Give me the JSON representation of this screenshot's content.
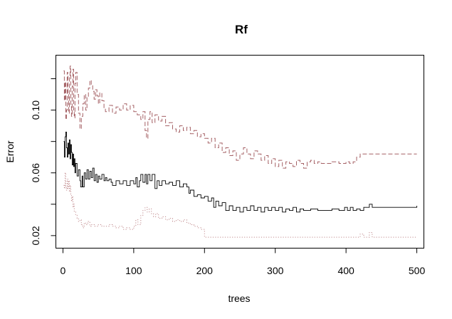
{
  "chart_data": {
    "type": "line",
    "title": "Rf",
    "xlabel": "trees",
    "ylabel": "Error",
    "xlim": [
      -10,
      510
    ],
    "ylim": [
      0.012,
      0.135
    ],
    "x_ticks": [
      0,
      100,
      200,
      300,
      400,
      500
    ],
    "y_ticks": [
      0.02,
      0.04,
      0.06,
      0.08,
      0.1,
      0.12
    ],
    "y_tick_labels_shown": [
      "0.02",
      "0.06",
      "0.10"
    ],
    "grid": false,
    "legend": "none",
    "series": [
      {
        "color": "#000000",
        "dash": "solid",
        "points": [
          [
            1,
            0.08
          ],
          [
            2,
            0.07
          ],
          [
            3,
            0.083
          ],
          [
            4,
            0.086
          ],
          [
            5,
            0.076
          ],
          [
            6,
            0.07
          ],
          [
            7,
            0.079
          ],
          [
            8,
            0.072
          ],
          [
            9,
            0.081
          ],
          [
            10,
            0.069
          ],
          [
            11,
            0.078
          ],
          [
            12,
            0.073
          ],
          [
            13,
            0.065
          ],
          [
            14,
            0.072
          ],
          [
            15,
            0.064
          ],
          [
            16,
            0.069
          ],
          [
            17,
            0.06
          ],
          [
            18,
            0.066
          ],
          [
            20,
            0.058
          ],
          [
            22,
            0.062
          ],
          [
            24,
            0.055
          ],
          [
            25,
            0.051
          ],
          [
            27,
            0.058
          ],
          [
            28,
            0.051
          ],
          [
            30,
            0.06
          ],
          [
            32,
            0.056
          ],
          [
            34,
            0.062
          ],
          [
            36,
            0.056
          ],
          [
            38,
            0.061
          ],
          [
            40,
            0.057
          ],
          [
            42,
            0.063
          ],
          [
            44,
            0.055
          ],
          [
            46,
            0.059
          ],
          [
            48,
            0.054
          ],
          [
            50,
            0.058
          ],
          [
            52,
            0.056
          ],
          [
            55,
            0.059
          ],
          [
            58,
            0.055
          ],
          [
            60,
            0.057
          ],
          [
            62,
            0.055
          ],
          [
            65,
            0.056
          ],
          [
            68,
            0.054
          ],
          [
            70,
            0.052
          ],
          [
            75,
            0.055
          ],
          [
            80,
            0.053
          ],
          [
            85,
            0.055
          ],
          [
            90,
            0.052
          ],
          [
            95,
            0.055
          ],
          [
            100,
            0.053
          ],
          [
            103,
            0.057
          ],
          [
            105,
            0.051
          ],
          [
            108,
            0.055
          ],
          [
            110,
            0.059
          ],
          [
            113,
            0.054
          ],
          [
            116,
            0.059
          ],
          [
            118,
            0.053
          ],
          [
            120,
            0.059
          ],
          [
            123,
            0.055
          ],
          [
            126,
            0.059
          ],
          [
            130,
            0.05
          ],
          [
            133,
            0.055
          ],
          [
            136,
            0.052
          ],
          [
            140,
            0.055
          ],
          [
            145,
            0.053
          ],
          [
            150,
            0.054
          ],
          [
            155,
            0.052
          ],
          [
            160,
            0.055
          ],
          [
            165,
            0.051
          ],
          [
            170,
            0.053
          ],
          [
            175,
            0.051
          ],
          [
            178,
            0.047
          ],
          [
            180,
            0.049
          ],
          [
            185,
            0.045
          ],
          [
            190,
            0.046
          ],
          [
            195,
            0.044
          ],
          [
            200,
            0.045
          ],
          [
            205,
            0.042
          ],
          [
            210,
            0.044
          ],
          [
            213,
            0.038
          ],
          [
            216,
            0.042
          ],
          [
            220,
            0.039
          ],
          [
            225,
            0.041
          ],
          [
            230,
            0.036
          ],
          [
            235,
            0.039
          ],
          [
            240,
            0.036
          ],
          [
            245,
            0.038
          ],
          [
            250,
            0.035
          ],
          [
            255,
            0.038
          ],
          [
            260,
            0.036
          ],
          [
            265,
            0.039
          ],
          [
            270,
            0.036
          ],
          [
            275,
            0.038
          ],
          [
            280,
            0.035
          ],
          [
            285,
            0.038
          ],
          [
            290,
            0.036
          ],
          [
            295,
            0.038
          ],
          [
            300,
            0.036
          ],
          [
            305,
            0.038
          ],
          [
            310,
            0.035
          ],
          [
            315,
            0.037
          ],
          [
            320,
            0.036
          ],
          [
            325,
            0.038
          ],
          [
            330,
            0.035
          ],
          [
            335,
            0.037
          ],
          [
            340,
            0.036
          ],
          [
            350,
            0.037
          ],
          [
            360,
            0.036
          ],
          [
            370,
            0.036
          ],
          [
            380,
            0.037
          ],
          [
            390,
            0.036
          ],
          [
            398,
            0.038
          ],
          [
            402,
            0.036
          ],
          [
            406,
            0.038
          ],
          [
            410,
            0.036
          ],
          [
            415,
            0.037
          ],
          [
            420,
            0.036
          ],
          [
            425,
            0.038
          ],
          [
            430,
            0.038
          ],
          [
            433,
            0.04
          ],
          [
            437,
            0.038
          ],
          [
            450,
            0.038
          ],
          [
            470,
            0.038
          ],
          [
            490,
            0.038
          ],
          [
            500,
            0.039
          ]
        ]
      },
      {
        "color": "#a56165",
        "dash": "dashed",
        "points": [
          [
            1,
            0.125
          ],
          [
            2,
            0.106
          ],
          [
            3,
            0.118
          ],
          [
            4,
            0.094
          ],
          [
            5,
            0.1
          ],
          [
            6,
            0.124
          ],
          [
            7,
            0.111
          ],
          [
            8,
            0.098
          ],
          [
            9,
            0.121
          ],
          [
            10,
            0.128
          ],
          [
            11,
            0.103
          ],
          [
            12,
            0.096
          ],
          [
            13,
            0.115
          ],
          [
            14,
            0.126
          ],
          [
            15,
            0.1
          ],
          [
            16,
            0.095
          ],
          [
            17,
            0.117
          ],
          [
            18,
            0.124
          ],
          [
            20,
            0.11
          ],
          [
            22,
            0.098
          ],
          [
            24,
            0.088
          ],
          [
            26,
            0.096
          ],
          [
            28,
            0.104
          ],
          [
            30,
            0.11
          ],
          [
            32,
            0.1
          ],
          [
            34,
            0.108
          ],
          [
            36,
            0.114
          ],
          [
            38,
            0.119
          ],
          [
            40,
            0.116
          ],
          [
            42,
            0.112
          ],
          [
            44,
            0.107
          ],
          [
            46,
            0.113
          ],
          [
            48,
            0.109
          ],
          [
            50,
            0.104
          ],
          [
            52,
            0.111
          ],
          [
            55,
            0.106
          ],
          [
            58,
            0.101
          ],
          [
            60,
            0.099
          ],
          [
            65,
            0.103
          ],
          [
            70,
            0.098
          ],
          [
            75,
            0.102
          ],
          [
            80,
            0.1
          ],
          [
            85,
            0.104
          ],
          [
            90,
            0.1
          ],
          [
            95,
            0.103
          ],
          [
            100,
            0.099
          ],
          [
            105,
            0.097
          ],
          [
            110,
            0.094
          ],
          [
            113,
            0.099
          ],
          [
            116,
            0.087
          ],
          [
            118,
            0.082
          ],
          [
            120,
            0.094
          ],
          [
            123,
            0.099
          ],
          [
            126,
            0.092
          ],
          [
            130,
            0.097
          ],
          [
            135,
            0.093
          ],
          [
            140,
            0.096
          ],
          [
            145,
            0.09
          ],
          [
            150,
            0.092
          ],
          [
            155,
            0.088
          ],
          [
            160,
            0.086
          ],
          [
            165,
            0.09
          ],
          [
            170,
            0.087
          ],
          [
            175,
            0.089
          ],
          [
            180,
            0.085
          ],
          [
            185,
            0.087
          ],
          [
            190,
            0.083
          ],
          [
            195,
            0.085
          ],
          [
            200,
            0.082
          ],
          [
            205,
            0.079
          ],
          [
            210,
            0.082
          ],
          [
            215,
            0.076
          ],
          [
            220,
            0.079
          ],
          [
            225,
            0.073
          ],
          [
            230,
            0.076
          ],
          [
            235,
            0.071
          ],
          [
            240,
            0.074
          ],
          [
            245,
            0.068
          ],
          [
            250,
            0.072
          ],
          [
            255,
            0.076
          ],
          [
            260,
            0.072
          ],
          [
            265,
            0.069
          ],
          [
            270,
            0.074
          ],
          [
            275,
            0.072
          ],
          [
            280,
            0.068
          ],
          [
            285,
            0.071
          ],
          [
            290,
            0.066
          ],
          [
            295,
            0.069
          ],
          [
            300,
            0.064
          ],
          [
            305,
            0.068
          ],
          [
            310,
            0.063
          ],
          [
            315,
            0.067
          ],
          [
            320,
            0.066
          ],
          [
            325,
            0.064
          ],
          [
            330,
            0.068
          ],
          [
            335,
            0.066
          ],
          [
            340,
            0.063
          ],
          [
            345,
            0.067
          ],
          [
            350,
            0.068
          ],
          [
            355,
            0.066
          ],
          [
            360,
            0.067
          ],
          [
            365,
            0.066
          ],
          [
            370,
            0.066
          ],
          [
            380,
            0.067
          ],
          [
            390,
            0.066
          ],
          [
            400,
            0.067
          ],
          [
            405,
            0.066
          ],
          [
            410,
            0.067
          ],
          [
            415,
            0.07
          ],
          [
            420,
            0.072
          ],
          [
            430,
            0.072
          ],
          [
            450,
            0.072
          ],
          [
            470,
            0.072
          ],
          [
            490,
            0.072
          ],
          [
            500,
            0.072
          ]
        ]
      },
      {
        "color": "#c08a8d",
        "dash": "dotted",
        "points": [
          [
            1,
            0.052
          ],
          [
            2,
            0.05
          ],
          [
            3,
            0.06
          ],
          [
            4,
            0.051
          ],
          [
            5,
            0.049
          ],
          [
            6,
            0.056
          ],
          [
            7,
            0.05
          ],
          [
            8,
            0.055
          ],
          [
            9,
            0.048
          ],
          [
            10,
            0.052
          ],
          [
            11,
            0.046
          ],
          [
            12,
            0.042
          ],
          [
            13,
            0.045
          ],
          [
            14,
            0.038
          ],
          [
            15,
            0.04
          ],
          [
            16,
            0.035
          ],
          [
            18,
            0.033
          ],
          [
            20,
            0.031
          ],
          [
            22,
            0.029
          ],
          [
            24,
            0.03
          ],
          [
            26,
            0.027
          ],
          [
            28,
            0.025
          ],
          [
            30,
            0.028
          ],
          [
            32,
            0.027
          ],
          [
            35,
            0.029
          ],
          [
            38,
            0.026
          ],
          [
            40,
            0.027
          ],
          [
            45,
            0.026
          ],
          [
            50,
            0.027
          ],
          [
            55,
            0.026
          ],
          [
            60,
            0.026
          ],
          [
            65,
            0.027
          ],
          [
            70,
            0.026
          ],
          [
            75,
            0.025
          ],
          [
            80,
            0.026
          ],
          [
            85,
            0.024
          ],
          [
            90,
            0.025
          ],
          [
            95,
            0.024
          ],
          [
            100,
            0.026
          ],
          [
            103,
            0.03
          ],
          [
            106,
            0.027
          ],
          [
            110,
            0.033
          ],
          [
            113,
            0.036
          ],
          [
            116,
            0.038
          ],
          [
            119,
            0.035
          ],
          [
            122,
            0.037
          ],
          [
            125,
            0.034
          ],
          [
            128,
            0.032
          ],
          [
            131,
            0.034
          ],
          [
            135,
            0.031
          ],
          [
            140,
            0.032
          ],
          [
            145,
            0.03
          ],
          [
            150,
            0.031
          ],
          [
            155,
            0.029
          ],
          [
            160,
            0.03
          ],
          [
            165,
            0.029
          ],
          [
            170,
            0.03
          ],
          [
            175,
            0.028
          ],
          [
            180,
            0.027
          ],
          [
            185,
            0.026
          ],
          [
            190,
            0.025
          ],
          [
            195,
            0.024
          ],
          [
            200,
            0.019
          ],
          [
            210,
            0.019
          ],
          [
            250,
            0.019
          ],
          [
            300,
            0.019
          ],
          [
            350,
            0.019
          ],
          [
            400,
            0.019
          ],
          [
            415,
            0.019
          ],
          [
            420,
            0.021
          ],
          [
            425,
            0.019
          ],
          [
            430,
            0.019
          ],
          [
            433,
            0.022
          ],
          [
            437,
            0.019
          ],
          [
            450,
            0.019
          ],
          [
            500,
            0.019
          ]
        ]
      }
    ]
  }
}
